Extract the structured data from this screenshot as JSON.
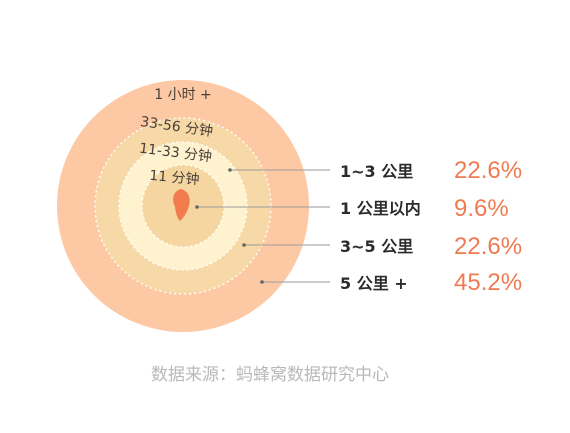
{
  "chart_data": {
    "type": "concentric-rings",
    "rings": [
      {
        "label": "1 小时 +",
        "color": "#fdc9a4"
      },
      {
        "label": "33-56 分钟",
        "color": "#f7d9a8"
      },
      {
        "label": "11-33 分钟",
        "color": "#fff3cf"
      },
      {
        "label": "11 分钟",
        "color": "#f6d6a0"
      }
    ],
    "center_marker_color": "#f27c4d",
    "legend": [
      {
        "label": "1~3 公里",
        "value": "22.6%"
      },
      {
        "label": "1 公里以内",
        "value": "9.6%"
      },
      {
        "label": "3~5 公里",
        "value": "22.6%"
      },
      {
        "label": "5 公里 +",
        "value": "45.2%"
      }
    ],
    "values": [
      22.6,
      9.6,
      22.6,
      45.2
    ]
  },
  "source": "数据来源：蚂蜂窝数据研究中心",
  "colors": {
    "accent": "#f07a52",
    "leader_line": "#9a9a9a",
    "source_text": "#b9b9b9"
  }
}
